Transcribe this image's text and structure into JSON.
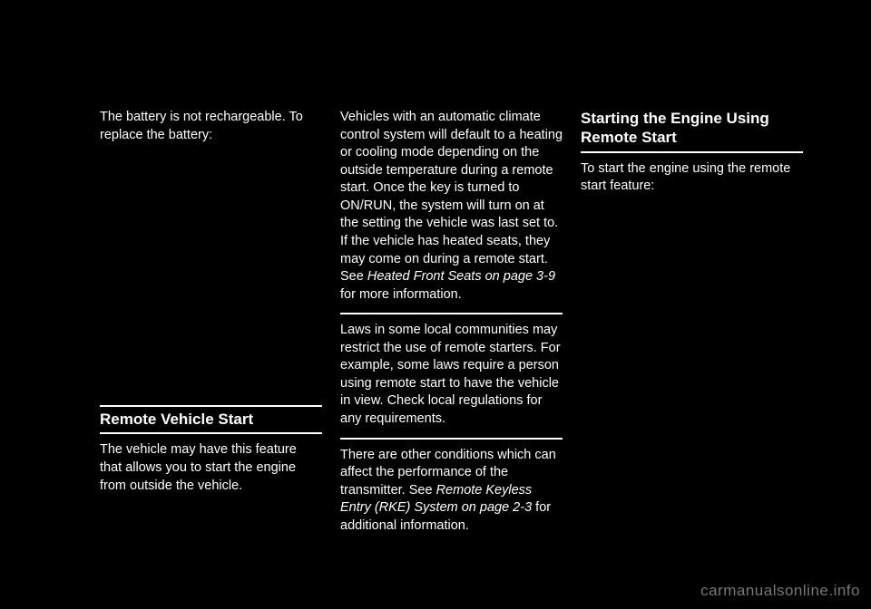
{
  "col1": {
    "para1": "The battery is not rechargeable. To replace the battery:",
    "heading": "Remote Vehicle Start",
    "para2": "The vehicle may have this feature that allows you to start the engine from outside the vehicle."
  },
  "col2": {
    "para1_a": "Vehicles with an automatic climate control system will default to a heating or cooling mode depending on the outside temperature during a remote start. Once the key is turned to ON/RUN, the system will turn on at the setting the vehicle was last set to. If the vehicle has heated seats, they may come on during a remote start. See ",
    "para1_i": "Heated Front Seats on page 3-9",
    "para1_b": " for more information.",
    "para2": "Laws in some local communities may restrict the use of remote starters. For example, some laws require a person using remote start to have the vehicle in view. Check local regulations for any requirements.",
    "para3_a": "There are other conditions which can affect the performance of the transmitter. See ",
    "para3_i": "Remote Keyless Entry (RKE) System on page 2-3",
    "para3_b": " for additional information."
  },
  "col3": {
    "heading": "Starting the Engine Using Remote Start",
    "para1": "To start the engine using the remote start feature:"
  },
  "watermark": "carmanualsonline.info"
}
